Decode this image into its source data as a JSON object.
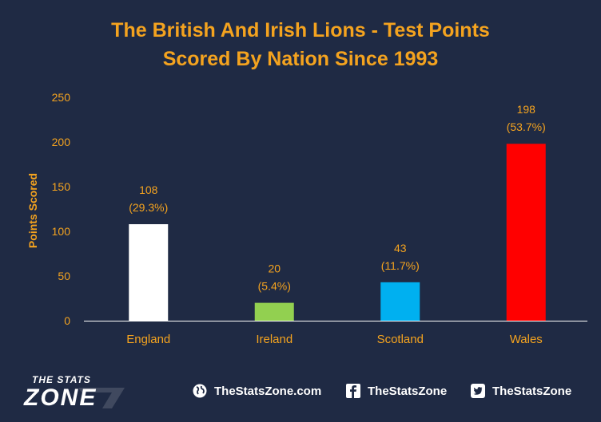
{
  "chart_data": {
    "type": "bar",
    "title": "The British And Irish Lions - Test Points Scored By Nation Since 1993",
    "title_lines": [
      "The British And Irish Lions - Test Points",
      "Scored By Nation Since 1993"
    ],
    "ylabel": "Points Scored",
    "xlabel": "",
    "ylim": [
      0,
      250
    ],
    "yticks": [
      0,
      50,
      100,
      150,
      200,
      250
    ],
    "grid": false,
    "legend": "none",
    "categories": [
      "England",
      "Ireland",
      "Scotland",
      "Wales"
    ],
    "values": [
      108,
      20,
      43,
      198
    ],
    "value_labels": [
      "108",
      "20",
      "43",
      "198"
    ],
    "percent_labels": [
      "(29.3%)",
      "(5.4%)",
      "(11.7%)",
      "(53.7%)"
    ],
    "colors": [
      "#ffffff",
      "#92d050",
      "#00b0f0",
      "#ff0000"
    ]
  },
  "colors": {
    "background": "#1f2a44",
    "accent": "#f4a31f",
    "axis_text": "#ffffff"
  },
  "footer": {
    "logo": {
      "line1": "THE STATS",
      "line2": "ZONE"
    },
    "links": [
      {
        "icon": "globe-icon",
        "label": "TheStatsZone.com"
      },
      {
        "icon": "facebook-icon",
        "label": "TheStatsZone"
      },
      {
        "icon": "twitter-icon",
        "label": "TheStatsZone"
      }
    ]
  }
}
